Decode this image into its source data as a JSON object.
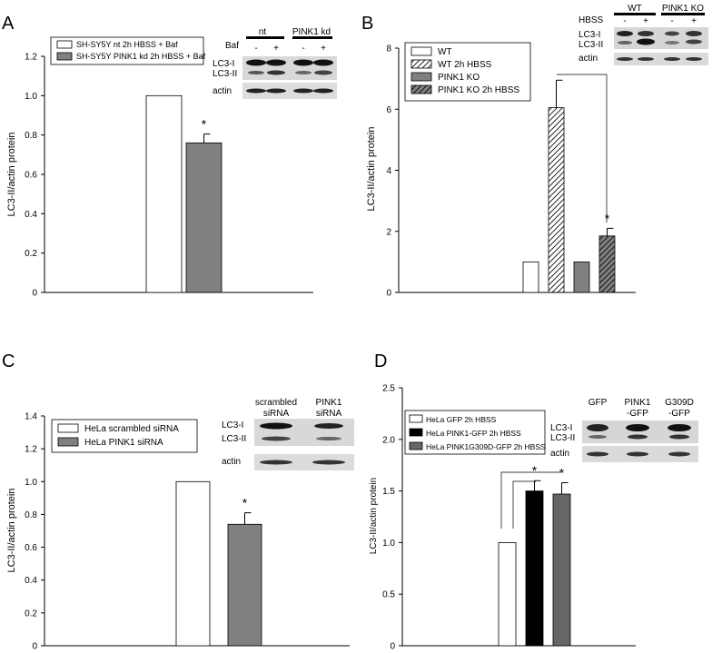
{
  "panels": [
    {
      "letter": "A",
      "chart_data": {
        "type": "bar",
        "title": "",
        "xlabel": "",
        "ylabel": "LC3-II/actin protein",
        "ylim": [
          0,
          1.2
        ],
        "yticks": [
          "0",
          "0.2",
          "0.4",
          "0.6",
          "0.8",
          "1.0",
          "1.2"
        ],
        "legend": "top-left",
        "series": [
          {
            "name": "SH-SY5Y nt 2h HBSS + Baf",
            "value": 1.0,
            "error": 0,
            "fill": "#ffffff",
            "pattern": "none",
            "star": ""
          },
          {
            "name": "SH-SY5Y PINK1 kd 2h HBSS + Baf",
            "value": 0.76,
            "error": 0.045,
            "fill": "#808080",
            "pattern": "none",
            "star": "*"
          }
        ]
      },
      "blot": {
        "groups": [
          "nt",
          "PINK1 kd"
        ],
        "treatment": "Baf",
        "lanes": [
          "-",
          "+",
          "-",
          "+"
        ],
        "rows": [
          "LC3-I",
          "LC3-II",
          "actin"
        ]
      }
    },
    {
      "letter": "B",
      "chart_data": {
        "type": "bar",
        "title": "",
        "xlabel": "",
        "ylabel": "LC3-II/actin protein",
        "ylim": [
          0,
          8
        ],
        "yticks": [
          "0",
          "2",
          "4",
          "6",
          "8"
        ],
        "legend": "top-left",
        "series": [
          {
            "name": "WT",
            "value": 1.0,
            "error": 0,
            "fill": "#ffffff",
            "pattern": "none",
            "star": ""
          },
          {
            "name": "WT 2h HBSS",
            "value": 6.05,
            "error": 0.9,
            "fill": "#ffffff",
            "pattern": "hatch",
            "star": ""
          },
          {
            "name": "PINK1 KO",
            "value": 1.0,
            "error": 0,
            "fill": "#808080",
            "pattern": "none",
            "star": ""
          },
          {
            "name": "PINK1 KO 2h HBSS",
            "value": 1.85,
            "error": 0.25,
            "fill": "#808080",
            "pattern": "hatch",
            "star": "*"
          }
        ]
      },
      "blot": {
        "groups": [
          "WT",
          "PINK1 KO"
        ],
        "treatment": "HBSS",
        "lanes": [
          "-",
          "+",
          "-",
          "+"
        ],
        "rows": [
          "LC3-I",
          "LC3-II",
          "actin"
        ]
      }
    },
    {
      "letter": "C",
      "chart_data": {
        "type": "bar",
        "title": "",
        "xlabel": "",
        "ylabel": "LC3-II/actin protein",
        "ylim": [
          0,
          1.4
        ],
        "yticks": [
          "0",
          "0.2",
          "0.4",
          "0.6",
          "0.8",
          "1.0",
          "1.2",
          "1.4"
        ],
        "legend": "top-left",
        "series": [
          {
            "name": "HeLa scrambled siRNA",
            "value": 1.0,
            "error": 0,
            "fill": "#ffffff",
            "pattern": "none",
            "star": ""
          },
          {
            "name": "HeLa PINK1 siRNA",
            "value": 0.74,
            "error": 0.07,
            "fill": "#808080",
            "pattern": "none",
            "star": "*"
          }
        ]
      },
      "blot": {
        "lanes": [
          "scrambled siRNA",
          "PINK1 siRNA"
        ],
        "rows": [
          "LC3-I",
          "LC3-II",
          "actin"
        ]
      }
    },
    {
      "letter": "D",
      "chart_data": {
        "type": "bar",
        "title": "",
        "xlabel": "",
        "ylabel": "LC3-II/actin protein",
        "ylim": [
          0,
          2.5
        ],
        "yticks": [
          "0",
          "0.5",
          "1.0",
          "1.5",
          "2.0",
          "2.5"
        ],
        "legend": "top-left",
        "series": [
          {
            "name": "HeLa GFP 2h HBSS",
            "value": 1.0,
            "error": 0,
            "fill": "#ffffff",
            "pattern": "none",
            "star": ""
          },
          {
            "name": "HeLa PINK1-GFP 2h HBSS",
            "value": 1.5,
            "error": 0.1,
            "fill": "#000000",
            "pattern": "none",
            "star": "*"
          },
          {
            "name": "HeLa PINK1G309D-GFP 2h HBSS",
            "value": 1.47,
            "error": 0.11,
            "fill": "#666666",
            "pattern": "none",
            "star": "*"
          }
        ]
      },
      "blot": {
        "lanes": [
          "GFP",
          "PINK1 -GFP",
          "G309D -GFP"
        ],
        "rows": [
          "LC3-I",
          "LC3-II",
          "actin"
        ]
      }
    }
  ]
}
